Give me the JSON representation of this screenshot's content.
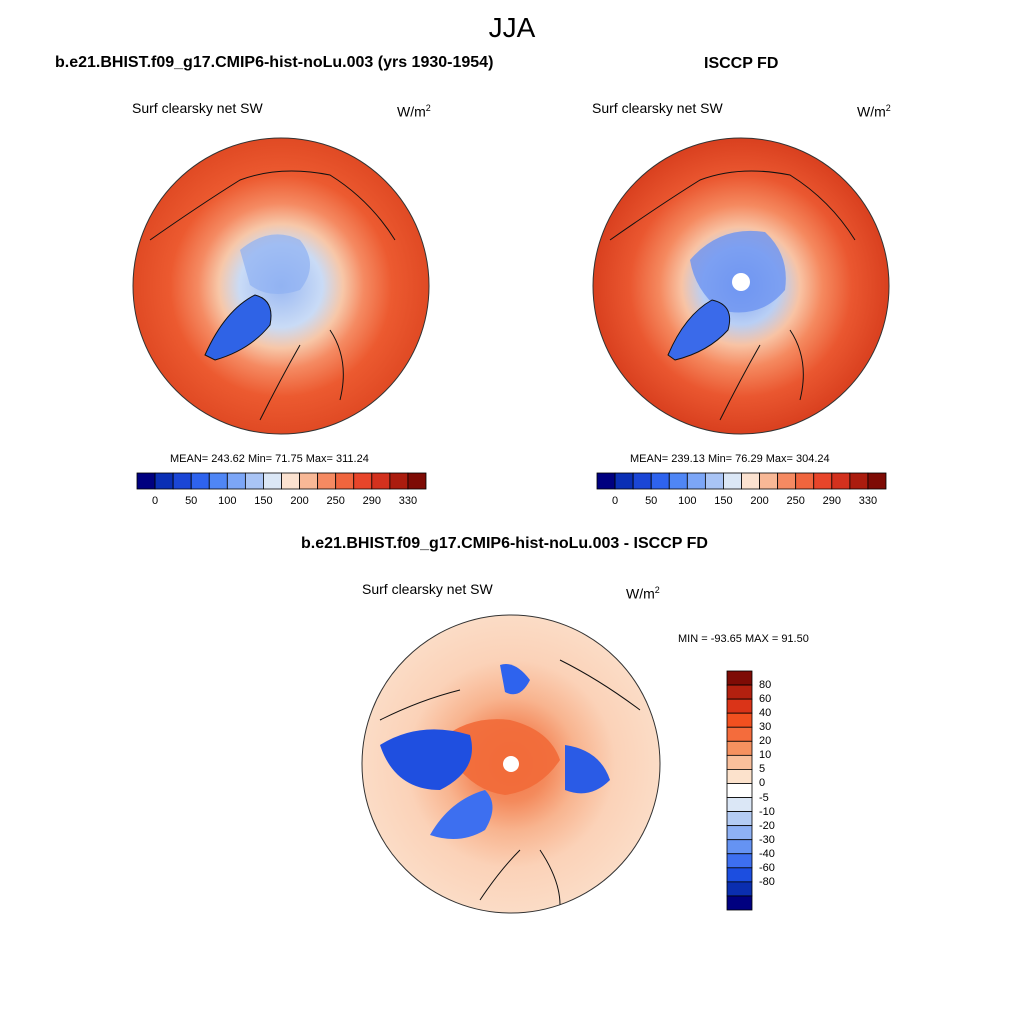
{
  "title": "JJA",
  "panels": [
    {
      "title": "b.e21.BHIST.f09_g17.CMIP6-hist-noLu.003 (yrs 1930-1954)",
      "variable": "Surf clearsky net SW",
      "units_base": "W/m",
      "units_exp": "2",
      "mean": "243.62",
      "min": "71.75",
      "max": "311.24",
      "stats_text": "MEAN= 243.62  Min=  71.75  Max= 311.24"
    },
    {
      "title": "ISCCP FD",
      "variable": "Surf clearsky net SW",
      "units_base": "W/m",
      "units_exp": "2",
      "mean": "239.13",
      "min": "76.29",
      "max": "304.24",
      "stats_text": "MEAN= 239.13  Min=  76.29  Max= 304.24"
    },
    {
      "title": "b.e21.BHIST.f09_g17.CMIP6-hist-noLu.003 - ISCCP FD",
      "variable": "Surf clearsky net SW",
      "units_base": "W/m",
      "units_exp": "2",
      "min": "-93.65",
      "max": "91.50",
      "stats_text": "MIN = -93.65 MAX =  91.50"
    }
  ],
  "colorbar_abs": {
    "labels": [
      "0",
      "50",
      "100",
      "150",
      "200",
      "250",
      "290",
      "330"
    ],
    "colors": [
      "#000080",
      "#0a2fb5",
      "#1a46d6",
      "#2e63ee",
      "#4f86f5",
      "#7ca6f7",
      "#a9c4f5",
      "#dbe7f6",
      "#fbe2d0",
      "#f8b896",
      "#f58a62",
      "#f0653e",
      "#e8452a",
      "#d3311e",
      "#ab1c0e",
      "#7e0b05"
    ]
  },
  "colorbar_diff": {
    "labels": [
      "80",
      "60",
      "40",
      "30",
      "20",
      "10",
      "5",
      "0",
      "-5",
      "-10",
      "-20",
      "-30",
      "-40",
      "-60",
      "-80"
    ],
    "colors": [
      "#7e0b05",
      "#b3200f",
      "#da3418",
      "#f2501f",
      "#f46c3c",
      "#f6915f",
      "#f9bf9b",
      "#fce2cc",
      "#ffffff",
      "#dbe7f6",
      "#b4ccf4",
      "#8eb1f5",
      "#6593f3",
      "#3d6ff0",
      "#1c4ee0",
      "#0a2eb0",
      "#000080"
    ]
  }
}
